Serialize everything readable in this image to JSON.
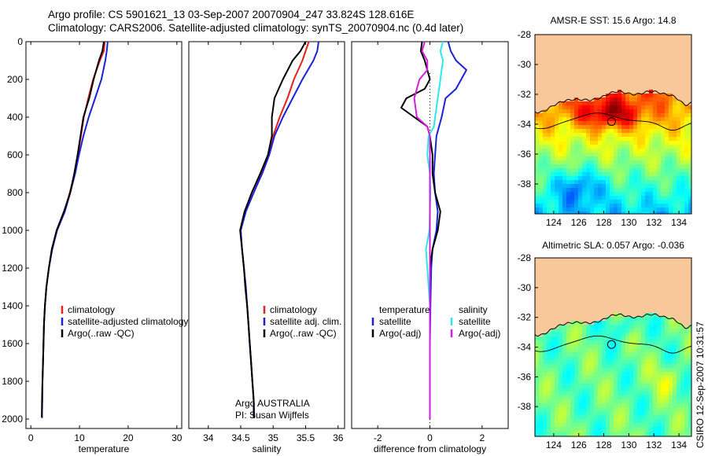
{
  "header": {
    "line1": "Argo profile: CS 5901621_13 03-Sep-2007 20070904_247 33.824S 128.616E",
    "line2": "Climatology: CARS2006. Satellite-adjusted climatology: synTS_20070904.nc (0.4d later)"
  },
  "stamp": "CSIRO 12-Sep-2007 10:31:57",
  "colors": {
    "climatology": "#e8201c",
    "satellite": "#1a22d8",
    "argo": "#000000",
    "argo_salinity_adj": "#d21edc",
    "satellite_salinity": "#2ee6ee",
    "land": "#f8c89a"
  },
  "chart_data": [
    {
      "type": "line",
      "id": "temperature",
      "xlabel": "temperature",
      "ylabel": "",
      "xlim": [
        -1,
        31
      ],
      "ylim": [
        2050,
        0
      ],
      "xticks": [
        0,
        10,
        20,
        30
      ],
      "yticks": [
        0,
        200,
        400,
        600,
        800,
        1000,
        1200,
        1400,
        1600,
        1800,
        2000
      ],
      "legend": [
        "climatology",
        "satellite-adjusted climatology",
        "Argo(..raw -QC)"
      ],
      "series": [
        {
          "name": "climatology",
          "color": "climatology",
          "points": [
            [
              15.2,
              0
            ],
            [
              15.0,
              50
            ],
            [
              14.2,
              100
            ],
            [
              12.8,
              200
            ],
            [
              11.8,
              300
            ],
            [
              10.9,
              400
            ],
            [
              10.3,
              500
            ],
            [
              9.7,
              600
            ],
            [
              9.0,
              700
            ],
            [
              8.0,
              800
            ],
            [
              6.9,
              900
            ],
            [
              5.3,
              1000
            ],
            [
              4.4,
              1100
            ],
            [
              3.7,
              1200
            ],
            [
              3.2,
              1300
            ],
            [
              2.9,
              1400
            ],
            [
              2.7,
              1500
            ],
            [
              2.6,
              1600
            ],
            [
              2.5,
              1700
            ],
            [
              2.4,
              1800
            ],
            [
              2.35,
              1900
            ],
            [
              2.3,
              1990
            ]
          ]
        },
        {
          "name": "satellite-adjusted climatology",
          "color": "satellite",
          "points": [
            [
              15.8,
              0
            ],
            [
              15.6,
              50
            ],
            [
              15.3,
              100
            ],
            [
              14.5,
              200
            ],
            [
              13.2,
              300
            ],
            [
              11.9,
              400
            ],
            [
              10.8,
              500
            ],
            [
              9.9,
              600
            ],
            [
              9.1,
              700
            ],
            [
              8.1,
              800
            ],
            [
              7.0,
              900
            ],
            [
              5.4,
              1000
            ],
            [
              4.4,
              1100
            ],
            [
              3.7,
              1200
            ],
            [
              3.2,
              1300
            ],
            [
              2.9,
              1400
            ],
            [
              2.7,
              1500
            ],
            [
              2.6,
              1600
            ],
            [
              2.5,
              1700
            ],
            [
              2.4,
              1800
            ],
            [
              2.35,
              1900
            ],
            [
              2.3,
              1995
            ]
          ]
        },
        {
          "name": "Argo(..raw -QC)",
          "color": "argo",
          "points": [
            [
              15.0,
              0
            ],
            [
              14.7,
              50
            ],
            [
              14.0,
              100
            ],
            [
              12.9,
              200
            ],
            [
              12.0,
              300
            ],
            [
              10.8,
              400
            ],
            [
              10.2,
              500
            ],
            [
              9.6,
              600
            ],
            [
              8.9,
              700
            ],
            [
              8.1,
              800
            ],
            [
              6.8,
              900
            ],
            [
              5.3,
              1000
            ],
            [
              4.3,
              1100
            ],
            [
              3.7,
              1200
            ],
            [
              3.2,
              1300
            ],
            [
              2.9,
              1400
            ],
            [
              2.7,
              1500
            ],
            [
              2.6,
              1600
            ],
            [
              2.5,
              1700
            ],
            [
              2.4,
              1800
            ],
            [
              2.3,
              1900
            ],
            [
              2.25,
              1990
            ]
          ]
        }
      ]
    },
    {
      "type": "line",
      "id": "salinity",
      "xlabel": "salinity",
      "xlim": [
        33.7,
        36.1
      ],
      "ylim": [
        2050,
        0
      ],
      "xticks": [
        34,
        34.5,
        35,
        35.5,
        36
      ],
      "legend": [
        "climatology",
        "satellite adj. clim.",
        "Argo(..raw -QC)"
      ],
      "annotation": [
        "Argo AUSTRALIA",
        "PI: Susan Wijffels"
      ],
      "series": [
        {
          "name": "climatology",
          "color": "climatology",
          "points": [
            [
              35.55,
              0
            ],
            [
              35.5,
              50
            ],
            [
              35.45,
              100
            ],
            [
              35.32,
              200
            ],
            [
              35.22,
              300
            ],
            [
              35.1,
              400
            ],
            [
              35.0,
              500
            ],
            [
              34.93,
              600
            ],
            [
              34.82,
              700
            ],
            [
              34.7,
              800
            ],
            [
              34.57,
              900
            ],
            [
              34.5,
              1000
            ],
            [
              34.52,
              1100
            ],
            [
              34.55,
              1200
            ],
            [
              34.57,
              1300
            ],
            [
              34.6,
              1400
            ],
            [
              34.62,
              1500
            ],
            [
              34.64,
              1600
            ],
            [
              34.66,
              1700
            ],
            [
              34.68,
              1800
            ],
            [
              34.7,
              1900
            ],
            [
              34.71,
              1990
            ]
          ]
        },
        {
          "name": "satellite adj. clim.",
          "color": "satellite",
          "points": [
            [
              35.7,
              0
            ],
            [
              35.68,
              50
            ],
            [
              35.62,
              100
            ],
            [
              35.45,
              200
            ],
            [
              35.3,
              300
            ],
            [
              35.15,
              400
            ],
            [
              35.02,
              500
            ],
            [
              34.94,
              600
            ],
            [
              34.83,
              700
            ],
            [
              34.7,
              800
            ],
            [
              34.58,
              900
            ],
            [
              34.5,
              1000
            ],
            [
              34.52,
              1100
            ],
            [
              34.55,
              1200
            ],
            [
              34.58,
              1300
            ],
            [
              34.6,
              1400
            ],
            [
              34.62,
              1500
            ],
            [
              34.64,
              1600
            ],
            [
              34.66,
              1700
            ],
            [
              34.68,
              1800
            ],
            [
              34.7,
              1900
            ],
            [
              34.71,
              1995
            ]
          ]
        },
        {
          "name": "Argo(..raw -QC)",
          "color": "argo",
          "points": [
            [
              35.5,
              0
            ],
            [
              35.42,
              50
            ],
            [
              35.3,
              100
            ],
            [
              35.15,
              200
            ],
            [
              35.02,
              300
            ],
            [
              34.98,
              400
            ],
            [
              34.98,
              500
            ],
            [
              34.92,
              600
            ],
            [
              34.8,
              700
            ],
            [
              34.67,
              800
            ],
            [
              34.56,
              900
            ],
            [
              34.49,
              1000
            ],
            [
              34.52,
              1100
            ],
            [
              34.55,
              1200
            ],
            [
              34.57,
              1300
            ],
            [
              34.6,
              1400
            ],
            [
              34.62,
              1500
            ],
            [
              34.64,
              1600
            ],
            [
              34.66,
              1700
            ],
            [
              34.68,
              1800
            ],
            [
              34.7,
              1900
            ],
            [
              34.7,
              1990
            ]
          ]
        }
      ]
    },
    {
      "type": "line",
      "id": "difference",
      "xlabel": "difference from climatology",
      "xlim": [
        -3,
        3
      ],
      "ylim": [
        2050,
        0
      ],
      "xticks": [
        -2,
        0,
        2
      ],
      "legend": [
        "temperature",
        "satellite",
        "Argo(-adj)",
        "salinity",
        "satellite",
        "Argo(-adj)"
      ],
      "series": [
        {
          "name": "temperature satellite",
          "color": "satellite",
          "points": [
            [
              0.7,
              0
            ],
            [
              0.8,
              50
            ],
            [
              1.0,
              100
            ],
            [
              1.4,
              150
            ],
            [
              1.2,
              200
            ],
            [
              1.0,
              250
            ],
            [
              0.6,
              300
            ],
            [
              0.45,
              400
            ],
            [
              0.35,
              450
            ],
            [
              0.25,
              500
            ],
            [
              0.2,
              600
            ],
            [
              0.15,
              700
            ],
            [
              0.2,
              800
            ],
            [
              0.3,
              900
            ],
            [
              0.25,
              1000
            ],
            [
              0.1,
              1100
            ],
            [
              0.05,
              1200
            ],
            [
              0.02,
              1400
            ],
            [
              0,
              1600
            ],
            [
              0,
              1800
            ],
            [
              0,
              2000
            ]
          ]
        },
        {
          "name": "temperature Argo(-adj)",
          "color": "argo",
          "points": [
            [
              -0.3,
              0
            ],
            [
              -0.35,
              50
            ],
            [
              -0.2,
              100
            ],
            [
              0,
              200
            ],
            [
              -0.2,
              250
            ],
            [
              -0.9,
              300
            ],
            [
              -1.1,
              350
            ],
            [
              -0.6,
              400
            ],
            [
              -0.1,
              450
            ],
            [
              0,
              500
            ],
            [
              0.1,
              600
            ],
            [
              0.1,
              700
            ],
            [
              0.2,
              800
            ],
            [
              0.4,
              900
            ],
            [
              0.3,
              1000
            ],
            [
              0.1,
              1100
            ],
            [
              0,
              1200
            ],
            [
              0,
              1400
            ],
            [
              0,
              1600
            ],
            [
              0,
              1800
            ],
            [
              0,
              2000
            ]
          ]
        },
        {
          "name": "salinity satellite",
          "color": "satellite_salinity",
          "points": [
            [
              0.5,
              0
            ],
            [
              0.4,
              50
            ],
            [
              0.5,
              100
            ],
            [
              0.45,
              150
            ],
            [
              0.4,
              200
            ],
            [
              0.3,
              300
            ],
            [
              0.2,
              400
            ],
            [
              0.15,
              450
            ],
            [
              -0.05,
              500
            ],
            [
              -0.1,
              600
            ],
            [
              0,
              700
            ],
            [
              0.02,
              800
            ],
            [
              -0.02,
              1000
            ],
            [
              -0.15,
              1100
            ],
            [
              -0.1,
              1200
            ],
            [
              0,
              1400
            ],
            [
              0,
              1600
            ],
            [
              0,
              1800
            ],
            [
              0,
              2000
            ]
          ]
        },
        {
          "name": "salinity Argo(-adj)",
          "color": "argo_salinity_adj",
          "points": [
            [
              -0.2,
              0
            ],
            [
              -0.3,
              50
            ],
            [
              -0.1,
              100
            ],
            [
              -0.1,
              150
            ],
            [
              -0.4,
              200
            ],
            [
              -0.6,
              300
            ],
            [
              -0.5,
              400
            ],
            [
              -0.1,
              450
            ],
            [
              0,
              500
            ],
            [
              0,
              600
            ],
            [
              0,
              1000
            ],
            [
              0,
              1400
            ],
            [
              0,
              2000
            ]
          ]
        }
      ]
    },
    {
      "type": "heatmap",
      "id": "sst-map",
      "title": "AMSR-E SST: 15.6 Argo: 14.8",
      "xlim": [
        122.5,
        135
      ],
      "ylim": [
        -40,
        -28
      ],
      "xticks": [
        124,
        126,
        128,
        130,
        132,
        134
      ],
      "yticks": [
        -28,
        -30,
        -32,
        -34,
        -36,
        -38
      ],
      "marker": [
        128.616,
        -33.824
      ]
    },
    {
      "type": "heatmap",
      "id": "sla-map",
      "title": "Altimetric SLA: 0.057 Argo: -0.036",
      "xlim": [
        122.5,
        135
      ],
      "ylim": [
        -40,
        -28
      ],
      "xticks": [
        124,
        126,
        128,
        130,
        132,
        134
      ],
      "yticks": [
        -28,
        -30,
        -32,
        -34,
        -36,
        -38
      ],
      "marker": [
        128.616,
        -33.824
      ]
    }
  ]
}
